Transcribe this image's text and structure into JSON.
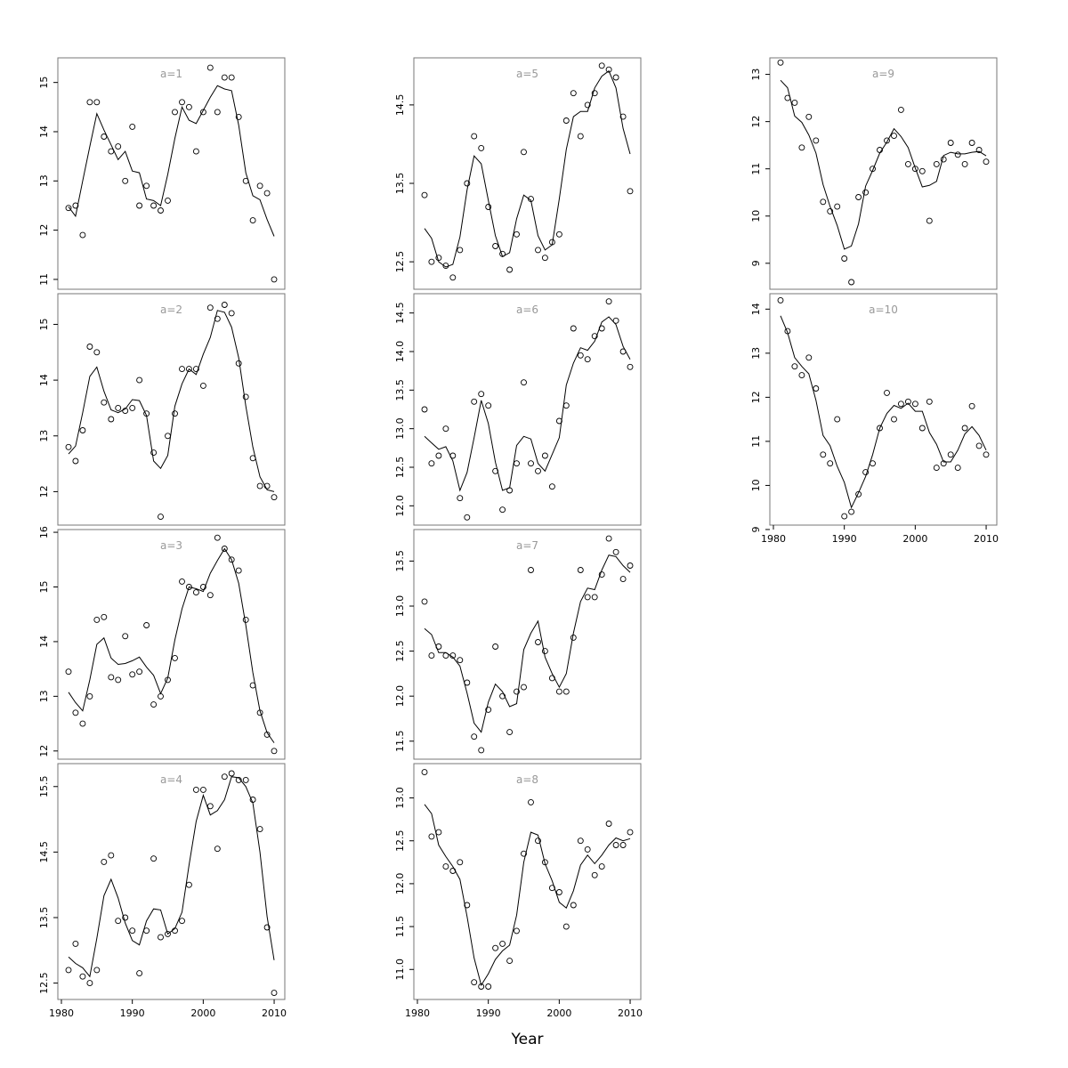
{
  "figure": {
    "xlabel": "Year",
    "background": "#ffffff",
    "panel_label_color": "#999999",
    "box_color": "#777777",
    "data_color": "#000000",
    "tick_font_size": 11,
    "panel_label_font_size": 12
  },
  "chart_data": [
    {
      "type": "scatter",
      "panel_label": "a=1",
      "col": 0,
      "row": 0,
      "x_axis": false,
      "xlim": [
        1979.5,
        2011.5
      ],
      "ylim": [
        10.8,
        15.5
      ],
      "xticks": [
        1980,
        1990,
        2000,
        2010
      ],
      "xtick_labels": [
        "1980",
        "1990",
        "2000",
        "2010"
      ],
      "yticks": [
        11,
        12,
        13,
        14,
        15
      ],
      "ytick_labels": [
        "11",
        "12",
        "13",
        "14",
        "15"
      ],
      "x": [
        1981,
        1982,
        1983,
        1984,
        1985,
        1986,
        1987,
        1988,
        1989,
        1990,
        1991,
        1992,
        1993,
        1994,
        1995,
        1996,
        1997,
        1998,
        1999,
        2000,
        2001,
        2002,
        2003,
        2004,
        2005,
        2006,
        2007,
        2008,
        2009,
        2010
      ],
      "points": [
        12.45,
        12.5,
        11.9,
        14.6,
        14.6,
        13.9,
        13.6,
        13.7,
        13.0,
        14.1,
        12.5,
        12.9,
        12.5,
        12.4,
        12.6,
        14.4,
        14.6,
        14.5,
        13.6,
        14.4,
        15.3,
        14.4,
        15.1,
        15.1,
        14.3,
        13.0,
        12.2,
        12.9,
        12.75,
        11.0
      ]
    },
    {
      "type": "scatter",
      "panel_label": "a=2",
      "col": 0,
      "row": 1,
      "x_axis": false,
      "xlim": [
        1979.5,
        2011.5
      ],
      "ylim": [
        11.4,
        15.55
      ],
      "xticks": [
        1980,
        1990,
        2000,
        2010
      ],
      "xtick_labels": [
        "1980",
        "1990",
        "2000",
        "2010"
      ],
      "yticks": [
        12,
        13,
        14,
        15
      ],
      "ytick_labels": [
        "12",
        "13",
        "14",
        "15"
      ],
      "x": [
        1981,
        1982,
        1983,
        1984,
        1985,
        1986,
        1987,
        1988,
        1989,
        1990,
        1991,
        1992,
        1993,
        1994,
        1995,
        1996,
        1997,
        1998,
        1999,
        2000,
        2001,
        2002,
        2003,
        2004,
        2005,
        2006,
        2007,
        2008,
        2009,
        2010
      ],
      "points": [
        12.8,
        12.55,
        13.1,
        14.6,
        14.5,
        13.6,
        13.3,
        13.5,
        13.45,
        13.5,
        14.0,
        13.4,
        12.7,
        11.55,
        13.0,
        13.4,
        14.2,
        14.2,
        14.2,
        13.9,
        15.3,
        15.1,
        15.35,
        15.2,
        14.3,
        13.7,
        12.6,
        12.1,
        12.1,
        11.9
      ]
    },
    {
      "type": "scatter",
      "panel_label": "a=3",
      "col": 0,
      "row": 2,
      "x_axis": false,
      "xlim": [
        1979.5,
        2011.5
      ],
      "ylim": [
        11.85,
        16.05
      ],
      "xticks": [
        1980,
        1990,
        2000,
        2010
      ],
      "xtick_labels": [
        "1980",
        "1990",
        "2000",
        "2010"
      ],
      "yticks": [
        12,
        13,
        14,
        15,
        16
      ],
      "ytick_labels": [
        "12",
        "13",
        "14",
        "15",
        "16"
      ],
      "x": [
        1981,
        1982,
        1983,
        1984,
        1985,
        1986,
        1987,
        1988,
        1989,
        1990,
        1991,
        1992,
        1993,
        1994,
        1995,
        1996,
        1997,
        1998,
        1999,
        2000,
        2001,
        2002,
        2003,
        2004,
        2005,
        2006,
        2007,
        2008,
        2009,
        2010
      ],
      "points": [
        13.45,
        12.7,
        12.5,
        13.0,
        14.4,
        14.45,
        13.35,
        13.3,
        14.1,
        13.4,
        13.45,
        14.3,
        12.85,
        13.0,
        13.3,
        13.7,
        15.1,
        15.0,
        14.9,
        15.0,
        14.85,
        15.9,
        15.7,
        15.5,
        15.3,
        14.4,
        13.2,
        12.7,
        12.3,
        12.0
      ]
    },
    {
      "type": "scatter",
      "panel_label": "a=4",
      "col": 0,
      "row": 3,
      "x_axis": true,
      "xlim": [
        1979.5,
        2011.5
      ],
      "ylim": [
        12.25,
        15.85
      ],
      "xticks": [
        1980,
        1990,
        2000,
        2010
      ],
      "xtick_labels": [
        "1980",
        "1990",
        "2000",
        "2010"
      ],
      "yticks": [
        12.5,
        13.5,
        14.5,
        15.5
      ],
      "ytick_labels": [
        "12.5",
        "13.5",
        "14.5",
        "15.5"
      ],
      "x": [
        1981,
        1982,
        1983,
        1984,
        1985,
        1986,
        1987,
        1988,
        1989,
        1990,
        1991,
        1992,
        1993,
        1994,
        1995,
        1996,
        1997,
        1998,
        1999,
        2000,
        2001,
        2002,
        2003,
        2004,
        2005,
        2006,
        2007,
        2008,
        2009,
        2010
      ],
      "points": [
        12.7,
        13.1,
        12.6,
        12.5,
        12.7,
        14.35,
        14.45,
        13.45,
        13.5,
        13.3,
        12.65,
        13.3,
        14.4,
        13.2,
        13.25,
        13.3,
        13.45,
        14.0,
        15.45,
        15.45,
        15.2,
        14.55,
        15.65,
        15.7,
        15.6,
        15.6,
        15.3,
        14.85,
        13.35,
        12.35
      ]
    },
    {
      "type": "scatter",
      "panel_label": "a=5",
      "col": 1,
      "row": 0,
      "x_axis": false,
      "xlim": [
        1979.5,
        2011.5
      ],
      "ylim": [
        12.15,
        15.1
      ],
      "xticks": [
        1980,
        1990,
        2000,
        2010
      ],
      "xtick_labels": [
        "1980",
        "1990",
        "2000",
        "2010"
      ],
      "yticks": [
        12.5,
        13.5,
        14.5
      ],
      "ytick_labels": [
        "12.5",
        "13.5",
        "14.5"
      ],
      "x": [
        1981,
        1982,
        1983,
        1984,
        1985,
        1986,
        1987,
        1988,
        1989,
        1990,
        1991,
        1992,
        1993,
        1994,
        1995,
        1996,
        1997,
        1998,
        1999,
        2000,
        2001,
        2002,
        2003,
        2004,
        2005,
        2006,
        2007,
        2008,
        2009,
        2010
      ],
      "points": [
        13.35,
        12.5,
        12.55,
        12.45,
        12.3,
        12.65,
        13.5,
        14.1,
        13.95,
        13.2,
        12.7,
        12.6,
        12.4,
        12.85,
        13.9,
        13.3,
        12.65,
        12.55,
        12.75,
        12.85,
        14.3,
        14.65,
        14.1,
        14.5,
        14.65,
        15.0,
        14.95,
        14.85,
        14.35,
        13.4
      ]
    },
    {
      "type": "scatter",
      "panel_label": "a=6",
      "col": 1,
      "row": 1,
      "x_axis": false,
      "xlim": [
        1979.5,
        2011.5
      ],
      "ylim": [
        11.75,
        14.75
      ],
      "xticks": [
        1980,
        1990,
        2000,
        2010
      ],
      "xtick_labels": [
        "1980",
        "1990",
        "2000",
        "2010"
      ],
      "yticks": [
        12.0,
        12.5,
        13.0,
        13.5,
        14.0,
        14.5
      ],
      "ytick_labels": [
        "12.0",
        "12.5",
        "13.0",
        "13.5",
        "14.0",
        "14.5"
      ],
      "x": [
        1981,
        1982,
        1983,
        1984,
        1985,
        1986,
        1987,
        1988,
        1989,
        1990,
        1991,
        1992,
        1993,
        1994,
        1995,
        1996,
        1997,
        1998,
        1999,
        2000,
        2001,
        2002,
        2003,
        2004,
        2005,
        2006,
        2007,
        2008,
        2009,
        2010
      ],
      "points": [
        13.25,
        12.55,
        12.65,
        13.0,
        12.65,
        12.1,
        11.85,
        13.35,
        13.45,
        13.3,
        12.45,
        11.95,
        12.2,
        12.55,
        13.6,
        12.55,
        12.45,
        12.65,
        12.25,
        13.1,
        13.3,
        14.3,
        13.95,
        13.9,
        14.2,
        14.3,
        14.65,
        14.4,
        14.0,
        13.8
      ]
    },
    {
      "type": "scatter",
      "panel_label": "a=7",
      "col": 1,
      "row": 2,
      "x_axis": false,
      "xlim": [
        1979.5,
        2011.5
      ],
      "ylim": [
        11.3,
        13.85
      ],
      "xticks": [
        1980,
        1990,
        2000,
        2010
      ],
      "xtick_labels": [
        "1980",
        "1990",
        "2000",
        "2010"
      ],
      "yticks": [
        11.5,
        12.0,
        12.5,
        13.0,
        13.5
      ],
      "ytick_labels": [
        "11.5",
        "12.0",
        "12.5",
        "13.0",
        "13.5"
      ],
      "x": [
        1981,
        1982,
        1983,
        1984,
        1985,
        1986,
        1987,
        1988,
        1989,
        1990,
        1991,
        1992,
        1993,
        1994,
        1995,
        1996,
        1997,
        1998,
        1999,
        2000,
        2001,
        2002,
        2003,
        2004,
        2005,
        2006,
        2007,
        2008,
        2009,
        2010
      ],
      "points": [
        13.05,
        12.45,
        12.55,
        12.45,
        12.45,
        12.4,
        12.15,
        11.55,
        11.4,
        11.85,
        12.55,
        12.0,
        11.6,
        12.05,
        12.1,
        13.4,
        12.6,
        12.5,
        12.2,
        12.05,
        12.05,
        12.65,
        13.4,
        13.1,
        13.1,
        13.35,
        13.75,
        13.6,
        13.3,
        13.45
      ]
    },
    {
      "type": "scatter",
      "panel_label": "a=8",
      "col": 1,
      "row": 3,
      "x_axis": true,
      "xlim": [
        1979.5,
        2011.5
      ],
      "ylim": [
        10.65,
        13.4
      ],
      "xticks": [
        1980,
        1990,
        2000,
        2010
      ],
      "xtick_labels": [
        "1980",
        "1990",
        "2000",
        "2010"
      ],
      "yticks": [
        11.0,
        11.5,
        12.0,
        12.5,
        13.0
      ],
      "ytick_labels": [
        "11.0",
        "11.5",
        "12.0",
        "12.5",
        "13.0"
      ],
      "x": [
        1981,
        1982,
        1983,
        1984,
        1985,
        1986,
        1987,
        1988,
        1989,
        1990,
        1991,
        1992,
        1993,
        1994,
        1995,
        1996,
        1997,
        1998,
        1999,
        2000,
        2001,
        2002,
        2003,
        2004,
        2005,
        2006,
        2007,
        2008,
        2009,
        2010
      ],
      "points": [
        13.3,
        12.55,
        12.6,
        12.2,
        12.15,
        12.25,
        11.75,
        10.85,
        10.8,
        10.8,
        11.25,
        11.3,
        11.1,
        11.45,
        12.35,
        12.95,
        12.5,
        12.25,
        11.95,
        11.9,
        11.5,
        11.75,
        12.5,
        12.4,
        12.1,
        12.2,
        12.7,
        12.45,
        12.45,
        12.6
      ]
    },
    {
      "type": "scatter",
      "panel_label": "a=9",
      "col": 2,
      "row": 0,
      "x_axis": false,
      "xlim": [
        1979.5,
        2011.5
      ],
      "ylim": [
        8.45,
        13.35
      ],
      "xticks": [
        1980,
        1990,
        2000,
        2010
      ],
      "xtick_labels": [
        "1980",
        "1990",
        "2000",
        "2010"
      ],
      "yticks": [
        9,
        10,
        11,
        12,
        13
      ],
      "ytick_labels": [
        "9",
        "10",
        "11",
        "12",
        "13"
      ],
      "x": [
        1981,
        1982,
        1983,
        1984,
        1985,
        1986,
        1987,
        1988,
        1989,
        1990,
        1991,
        1992,
        1993,
        1994,
        1995,
        1996,
        1997,
        1998,
        1999,
        2000,
        2001,
        2002,
        2003,
        2004,
        2005,
        2006,
        2007,
        2008,
        2009,
        2010
      ],
      "points": [
        13.25,
        12.5,
        12.4,
        11.45,
        12.1,
        11.6,
        10.3,
        10.1,
        10.2,
        9.1,
        8.6,
        10.4,
        10.5,
        11.0,
        11.4,
        11.6,
        11.7,
        12.25,
        11.1,
        11.0,
        10.95,
        9.9,
        11.1,
        11.2,
        11.55,
        11.3,
        11.1,
        11.55,
        11.4,
        11.15
      ]
    },
    {
      "type": "scatter",
      "panel_label": "a=10",
      "col": 2,
      "row": 1,
      "x_axis": true,
      "xlim": [
        1979.5,
        2011.5
      ],
      "ylim": [
        9.1,
        14.35
      ],
      "xticks": [
        1980,
        1990,
        2000,
        2010
      ],
      "xtick_labels": [
        "1980",
        "1990",
        "2000",
        "2010"
      ],
      "yticks": [
        9,
        10,
        11,
        12,
        13,
        14
      ],
      "ytick_labels": [
        "9",
        "10",
        "11",
        "12",
        "13",
        "14"
      ],
      "x": [
        1981,
        1982,
        1983,
        1984,
        1985,
        1986,
        1987,
        1988,
        1989,
        1990,
        1991,
        1992,
        1993,
        1994,
        1995,
        1996,
        1997,
        1998,
        1999,
        2000,
        2001,
        2002,
        2003,
        2004,
        2005,
        2006,
        2007,
        2008,
        2009,
        2010
      ],
      "points": [
        14.2,
        13.5,
        12.7,
        12.5,
        12.9,
        12.2,
        10.7,
        10.5,
        11.5,
        9.3,
        9.4,
        9.8,
        10.3,
        10.5,
        11.3,
        12.1,
        11.5,
        11.85,
        11.9,
        11.85,
        11.3,
        11.9,
        10.4,
        10.5,
        10.7,
        10.4,
        11.3,
        11.8,
        10.9,
        10.7
      ]
    }
  ]
}
